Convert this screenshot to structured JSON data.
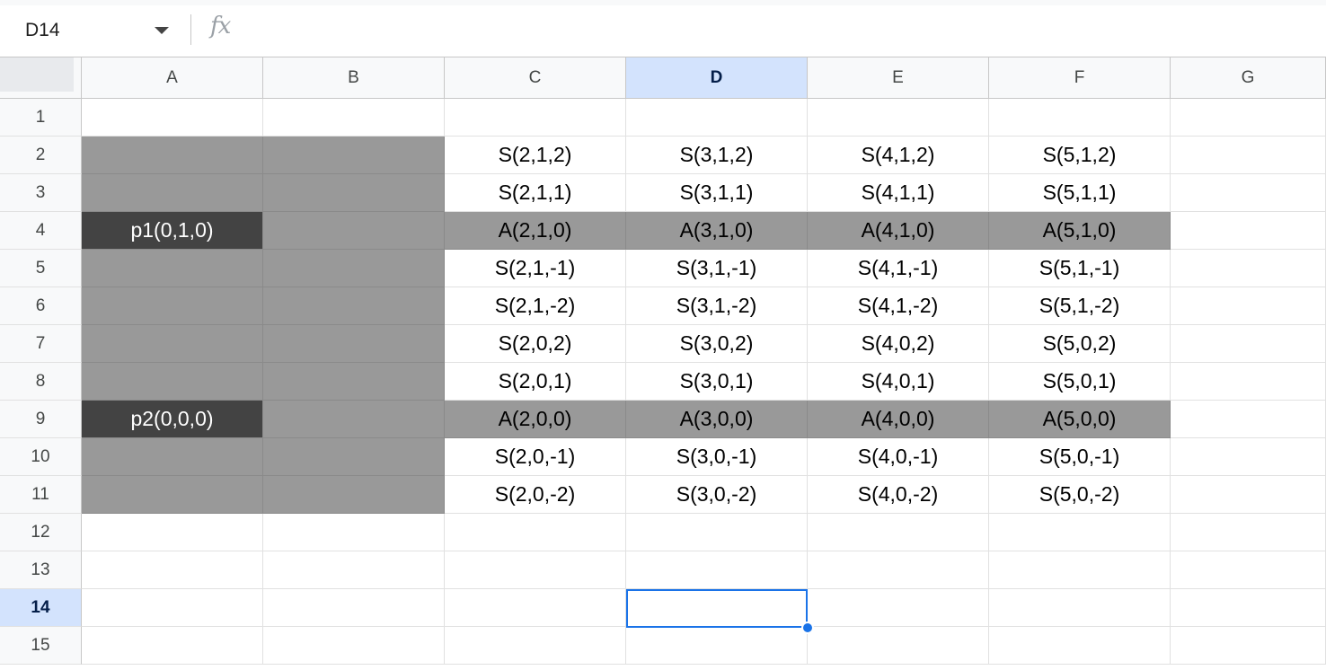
{
  "formula_bar": {
    "name_box": "D14",
    "fx_label": "fx",
    "formula_value": ""
  },
  "columns": [
    "A",
    "B",
    "C",
    "D",
    "E",
    "F",
    "G"
  ],
  "active_column": "D",
  "rows": [
    "1",
    "2",
    "3",
    "4",
    "5",
    "6",
    "7",
    "8",
    "9",
    "10",
    "11",
    "12",
    "13",
    "14",
    "15"
  ],
  "active_row": "14",
  "cells": {
    "A4": "p1(0,1,0)",
    "A9": "p2(0,0,0)",
    "C2": "S(2,1,2)",
    "D2": "S(3,1,2)",
    "E2": "S(4,1,2)",
    "F2": "S(5,1,2)",
    "C3": "S(2,1,1)",
    "D3": "S(3,1,1)",
    "E3": "S(4,1,1)",
    "F3": "S(5,1,1)",
    "C4": "A(2,1,0)",
    "D4": "A(3,1,0)",
    "E4": "A(4,1,0)",
    "F4": "A(5,1,0)",
    "C5": "S(2,1,-1)",
    "D5": "S(3,1,-1)",
    "E5": "S(4,1,-1)",
    "F5": "S(5,1,-1)",
    "C6": "S(2,1,-2)",
    "D6": "S(3,1,-2)",
    "E6": "S(4,1,-2)",
    "F6": "S(5,1,-2)",
    "C7": "S(2,0,2)",
    "D7": "S(3,0,2)",
    "E7": "S(4,0,2)",
    "F7": "S(5,0,2)",
    "C8": "S(2,0,1)",
    "D8": "S(3,0,1)",
    "E8": "S(4,0,1)",
    "F8": "S(5,0,1)",
    "C9": "A(2,0,0)",
    "D9": "A(3,0,0)",
    "E9": "A(4,0,0)",
    "F9": "A(5,0,0)",
    "C10": "S(2,0,-1)",
    "D10": "S(3,0,-1)",
    "E10": "S(4,0,-1)",
    "F10": "S(5,0,-1)",
    "C11": "S(2,0,-2)",
    "D11": "S(3,0,-2)",
    "E11": "S(4,0,-2)",
    "F11": "S(5,0,-2)"
  },
  "fills": {
    "gray_color": "#999999",
    "dark_color": "#434343",
    "gray_cells": [
      "A2",
      "A3",
      "A5",
      "A6",
      "A7",
      "A8",
      "A10",
      "A11",
      "B2",
      "B3",
      "B4",
      "B5",
      "B6",
      "B7",
      "B8",
      "B9",
      "B10",
      "B11",
      "C4",
      "D4",
      "E4",
      "F4",
      "C9",
      "D9",
      "E9",
      "F9"
    ],
    "dark_cells": [
      "A4",
      "A9"
    ]
  },
  "selection": {
    "cell": "D14",
    "border_color": "#1a73e8"
  }
}
